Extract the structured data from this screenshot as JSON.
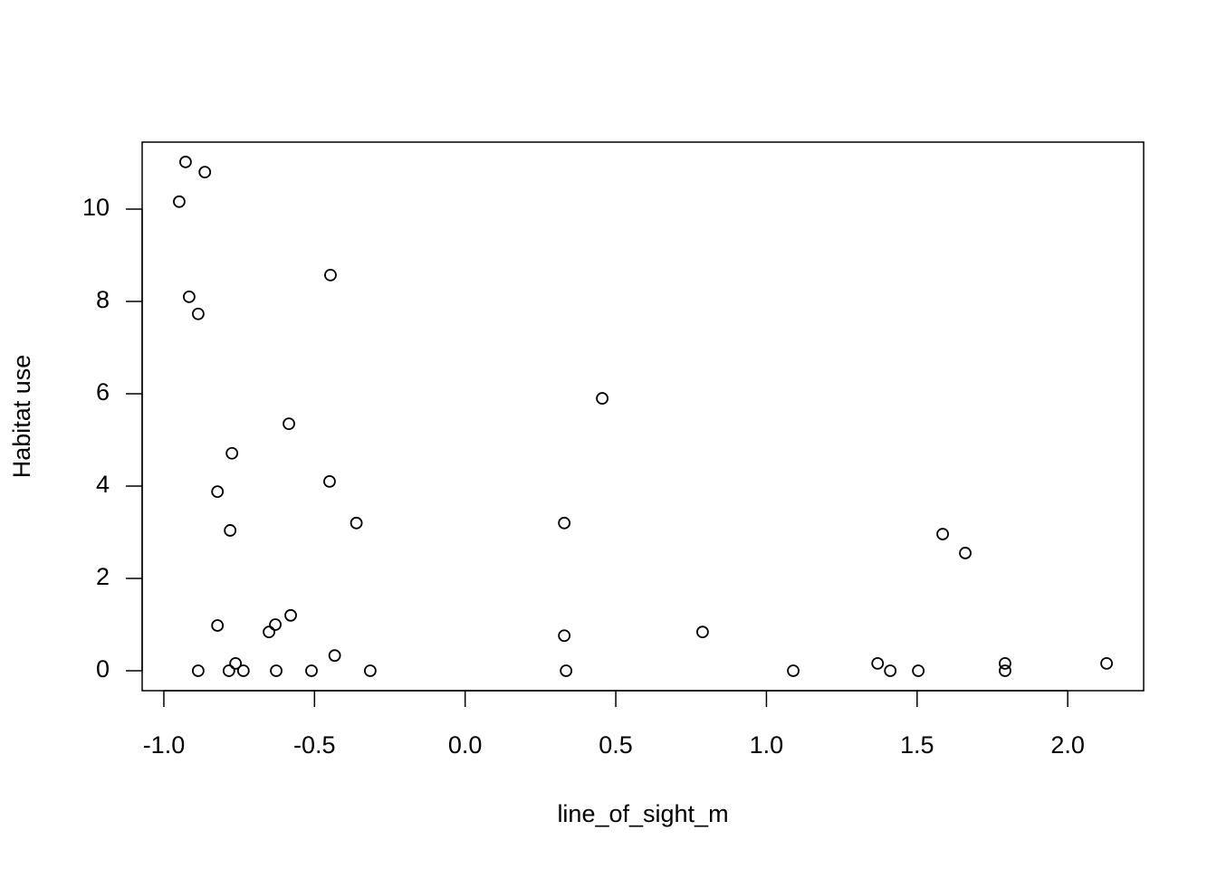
{
  "chart_data": {
    "type": "scatter",
    "xlabel": "line_of_sight_m",
    "ylabel": "Habitat use",
    "x": [
      -0.928,
      -0.864,
      -0.949,
      -0.447,
      -0.916,
      -0.886,
      0.455,
      -0.585,
      -0.774,
      -0.45,
      -0.822,
      -0.361,
      0.329,
      -0.78,
      1.585,
      1.66,
      -0.822,
      -0.579,
      -0.63,
      -0.651,
      0.788,
      0.329,
      -0.433,
      -0.762,
      1.369,
      1.792,
      2.129,
      -0.886,
      -0.784,
      -0.736,
      -0.627,
      -0.51,
      -0.315,
      0.335,
      1.089,
      1.411,
      1.504,
      1.792
    ],
    "values": [
      11.02,
      10.8,
      10.16,
      8.57,
      8.1,
      7.73,
      5.9,
      5.35,
      4.71,
      4.1,
      3.88,
      3.2,
      3.2,
      3.04,
      2.96,
      2.55,
      0.98,
      1.2,
      1.0,
      0.84,
      0.84,
      0.76,
      0.33,
      0.16,
      0.16,
      0.16,
      0.16,
      0,
      0,
      0,
      0,
      0,
      0,
      0,
      0,
      0,
      0,
      0
    ],
    "color": "#000000",
    "xlim": [
      -1.072,
      2.252
    ],
    "ylim": [
      -0.431,
      11.45
    ],
    "xticks": [
      {
        "value": -1,
        "label": "-1.0"
      },
      {
        "value": -0.5,
        "label": "-0.5"
      },
      {
        "value": 0,
        "label": "0.0"
      },
      {
        "value": 0.5,
        "label": "0.5"
      },
      {
        "value": 1,
        "label": "1.0"
      },
      {
        "value": 1.5,
        "label": "1.5"
      },
      {
        "value": 2,
        "label": "2.0"
      }
    ],
    "yticks": [
      0,
      2,
      4,
      6,
      8,
      10
    ]
  }
}
